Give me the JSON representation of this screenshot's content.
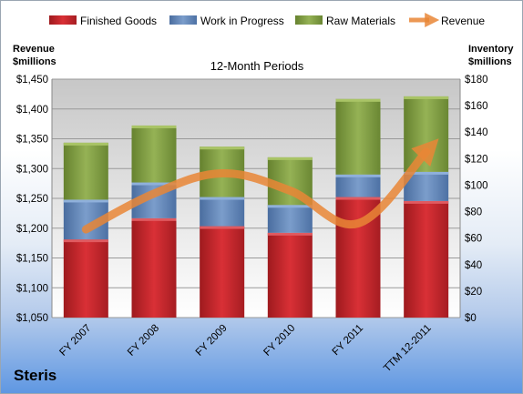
{
  "chart_data": {
    "type": "bar",
    "subtitle": "12-Month Periods",
    "company": "Steris",
    "categories": [
      "FY 2007",
      "FY 2008",
      "FY 2009",
      "FY 2010",
      "FY 2011",
      "TTM 12-2011"
    ],
    "left_axis": {
      "label_line1": "Revenue",
      "label_line2": "$millions",
      "ylim": [
        1050,
        1450
      ],
      "ticks": [
        "$1,050",
        "$1,100",
        "$1,150",
        "$1,200",
        "$1,250",
        "$1,300",
        "$1,350",
        "$1,400",
        "$1,450"
      ]
    },
    "right_axis": {
      "label_line1": "Inventory",
      "label_line2": "$millions",
      "ylim": [
        0,
        180
      ],
      "ticks": [
        "$0",
        "$20",
        "$40",
        "$60",
        "$80",
        "$100",
        "$120",
        "$140",
        "$160",
        "$180"
      ]
    },
    "series": [
      {
        "name": "Finished Goods",
        "type": "stacked-bar",
        "axis": "right",
        "color": "#c8262d",
        "values": [
          59,
          75,
          69,
          64,
          91,
          88
        ]
      },
      {
        "name": "Work in Progress",
        "type": "stacked-bar",
        "axis": "right",
        "color": "#5f85b9",
        "values": [
          30,
          27,
          22,
          21,
          17,
          22
        ]
      },
      {
        "name": "Raw Materials",
        "type": "stacked-bar",
        "axis": "right",
        "color": "#7f9c43",
        "values": [
          43,
          43,
          38,
          36,
          57,
          57
        ]
      },
      {
        "name": "Revenue",
        "type": "line",
        "axis": "left",
        "color": "#e98636",
        "values": [
          1198,
          1258,
          1292,
          1263,
          1208,
          1328
        ]
      }
    ],
    "grid": true,
    "legend_position": "top"
  }
}
